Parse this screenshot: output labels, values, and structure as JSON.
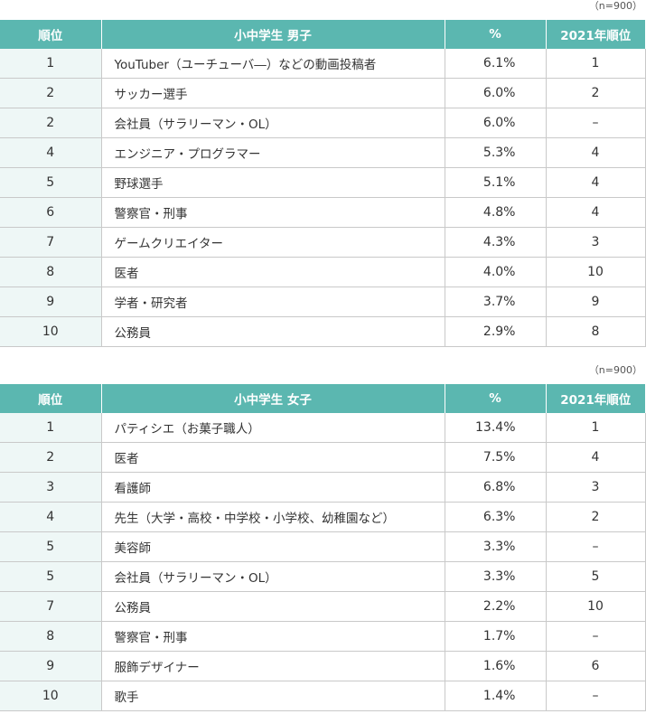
{
  "boys": {
    "note": "（n=900）",
    "headers": [
      "順位",
      "小中学生 男子",
      "%",
      "2021年順位"
    ],
    "rows": [
      {
        "rank": "1",
        "job": "YouTuber（ユーチューバ―）などの動画投稿者",
        "pct": "6.1%",
        "prev": "1"
      },
      {
        "rank": "2",
        "job": "サッカー選手",
        "pct": "6.0%",
        "prev": "2"
      },
      {
        "rank": "2",
        "job": "会社員（サラリーマン・OL）",
        "pct": "6.0%",
        "prev": "–"
      },
      {
        "rank": "4",
        "job": "エンジニア・プログラマー",
        "pct": "5.3%",
        "prev": "4"
      },
      {
        "rank": "5",
        "job": "野球選手",
        "pct": "5.1%",
        "prev": "4"
      },
      {
        "rank": "6",
        "job": "警察官・刑事",
        "pct": "4.8%",
        "prev": "4"
      },
      {
        "rank": "7",
        "job": "ゲームクリエイター",
        "pct": "4.3%",
        "prev": "3"
      },
      {
        "rank": "8",
        "job": "医者",
        "pct": "4.0%",
        "prev": "10"
      },
      {
        "rank": "9",
        "job": "学者・研究者",
        "pct": "3.7%",
        "prev": "9"
      },
      {
        "rank": "10",
        "job": "公務員",
        "pct": "2.9%",
        "prev": "8"
      }
    ]
  },
  "girls": {
    "note": "（n=900）",
    "headers": [
      "順位",
      "小中学生 女子",
      "%",
      "2021年順位"
    ],
    "rows": [
      {
        "rank": "1",
        "job": "パティシエ（お菓子職人）",
        "pct": "13.4%",
        "prev": "1"
      },
      {
        "rank": "2",
        "job": "医者",
        "pct": "7.5%",
        "prev": "4"
      },
      {
        "rank": "3",
        "job": "看護師",
        "pct": "6.8%",
        "prev": "3"
      },
      {
        "rank": "4",
        "job": "先生（大学・高校・中学校・小学校、幼稚園など）",
        "pct": "6.3%",
        "prev": "2"
      },
      {
        "rank": "5",
        "job": "美容師",
        "pct": "3.3%",
        "prev": "–"
      },
      {
        "rank": "5",
        "job": "会社員（サラリーマン・OL）",
        "pct": "3.3%",
        "prev": "5"
      },
      {
        "rank": "7",
        "job": "公務員",
        "pct": "2.2%",
        "prev": "10"
      },
      {
        "rank": "8",
        "job": "警察官・刑事",
        "pct": "1.7%",
        "prev": "–"
      },
      {
        "rank": "9",
        "job": "服飾デザイナー",
        "pct": "1.6%",
        "prev": "6"
      },
      {
        "rank": "10",
        "job": "歌手",
        "pct": "1.4%",
        "prev": "–"
      }
    ]
  }
}
